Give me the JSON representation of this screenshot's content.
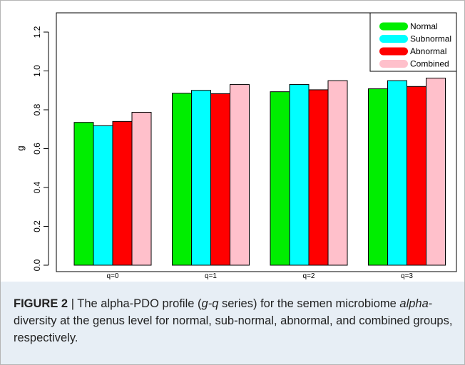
{
  "chart_data": {
    "type": "bar",
    "title": "",
    "xlabel": "",
    "ylabel": "g",
    "ylim": [
      0,
      1.2
    ],
    "yticks": [
      "0.0",
      "0.2",
      "0.4",
      "0.6",
      "0.8",
      "1.0",
      "1.2"
    ],
    "categories": [
      "q=0",
      "q=1",
      "q=2",
      "q=3"
    ],
    "series": [
      {
        "name": "Normal",
        "color": "#00ee00",
        "values": [
          0.735,
          0.885,
          0.893,
          0.908
        ]
      },
      {
        "name": "Subnormal",
        "color": "#00ffff",
        "values": [
          0.718,
          0.9,
          0.93,
          0.95
        ]
      },
      {
        "name": "Abnormal",
        "color": "#ff0000",
        "values": [
          0.74,
          0.883,
          0.903,
          0.92
        ]
      },
      {
        "name": "Combined",
        "color": "#ffc0cb",
        "values": [
          0.787,
          0.93,
          0.95,
          0.963
        ]
      }
    ],
    "legend_position": "top-right",
    "grid": false
  },
  "caption": {
    "label": "FIGURE 2",
    "separator": " | ",
    "part1": "The alpha-PDO profile (",
    "part2": "g-q",
    "part3": " series) for the semen microbiome ",
    "part4": "alpha",
    "part5": "-diversity at the genus level for normal, sub-normal, abnormal, and combined groups, respectively."
  }
}
